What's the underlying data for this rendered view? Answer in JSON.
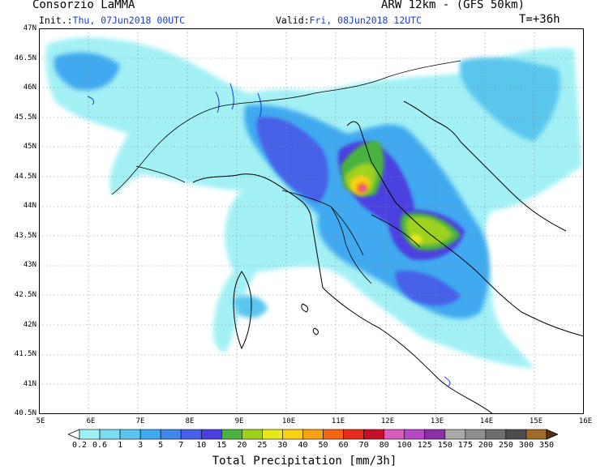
{
  "header": {
    "provider": "Consorzio LaMMA",
    "model": "ARW 12km - (GFS 50km)",
    "init_label": "Init.:",
    "init_value": "Thu, 07Jun2018 00UTC",
    "valid_label": "Valid:",
    "valid_value": "Fri, 08Jun2018 12UTC",
    "lead_time": "T=+36h"
  },
  "axes": {
    "lat_labels": [
      "47N",
      "46.5N",
      "46N",
      "45.5N",
      "45N",
      "44.5N",
      "44N",
      "43.5N",
      "43N",
      "42.5N",
      "42N",
      "41.5N",
      "41N",
      "40.5N"
    ],
    "lon_labels": [
      "5E",
      "6E",
      "7E",
      "8E",
      "9E",
      "10E",
      "11E",
      "12E",
      "13E",
      "14E",
      "15E",
      "16E"
    ]
  },
  "colorbar": {
    "labels": [
      "0.2",
      "0.6",
      "1",
      "3",
      "5",
      "7",
      "10",
      "15",
      "20",
      "25",
      "30",
      "40",
      "50",
      "60",
      "70",
      "80",
      "100",
      "125",
      "150",
      "175",
      "200",
      "250",
      "300",
      "350"
    ],
    "colors": [
      "#9ff0f5",
      "#7cdcf0",
      "#5ac6ee",
      "#41a9f0",
      "#3f86ec",
      "#4661e8",
      "#4c3fe0",
      "#4ab33f",
      "#9fd21f",
      "#e6e81d",
      "#fbcf12",
      "#f7a214",
      "#f36413",
      "#e92a1c",
      "#c6102a",
      "#d85ab9",
      "#b547c5",
      "#8b2fa6",
      "#a8a8a8",
      "#8e8e8e",
      "#6e6e6e",
      "#4d4d4d",
      "#a06a2a",
      "#7d4a1a",
      "#5a3210"
    ],
    "title": "Total Precipitation [mm/3h]"
  }
}
